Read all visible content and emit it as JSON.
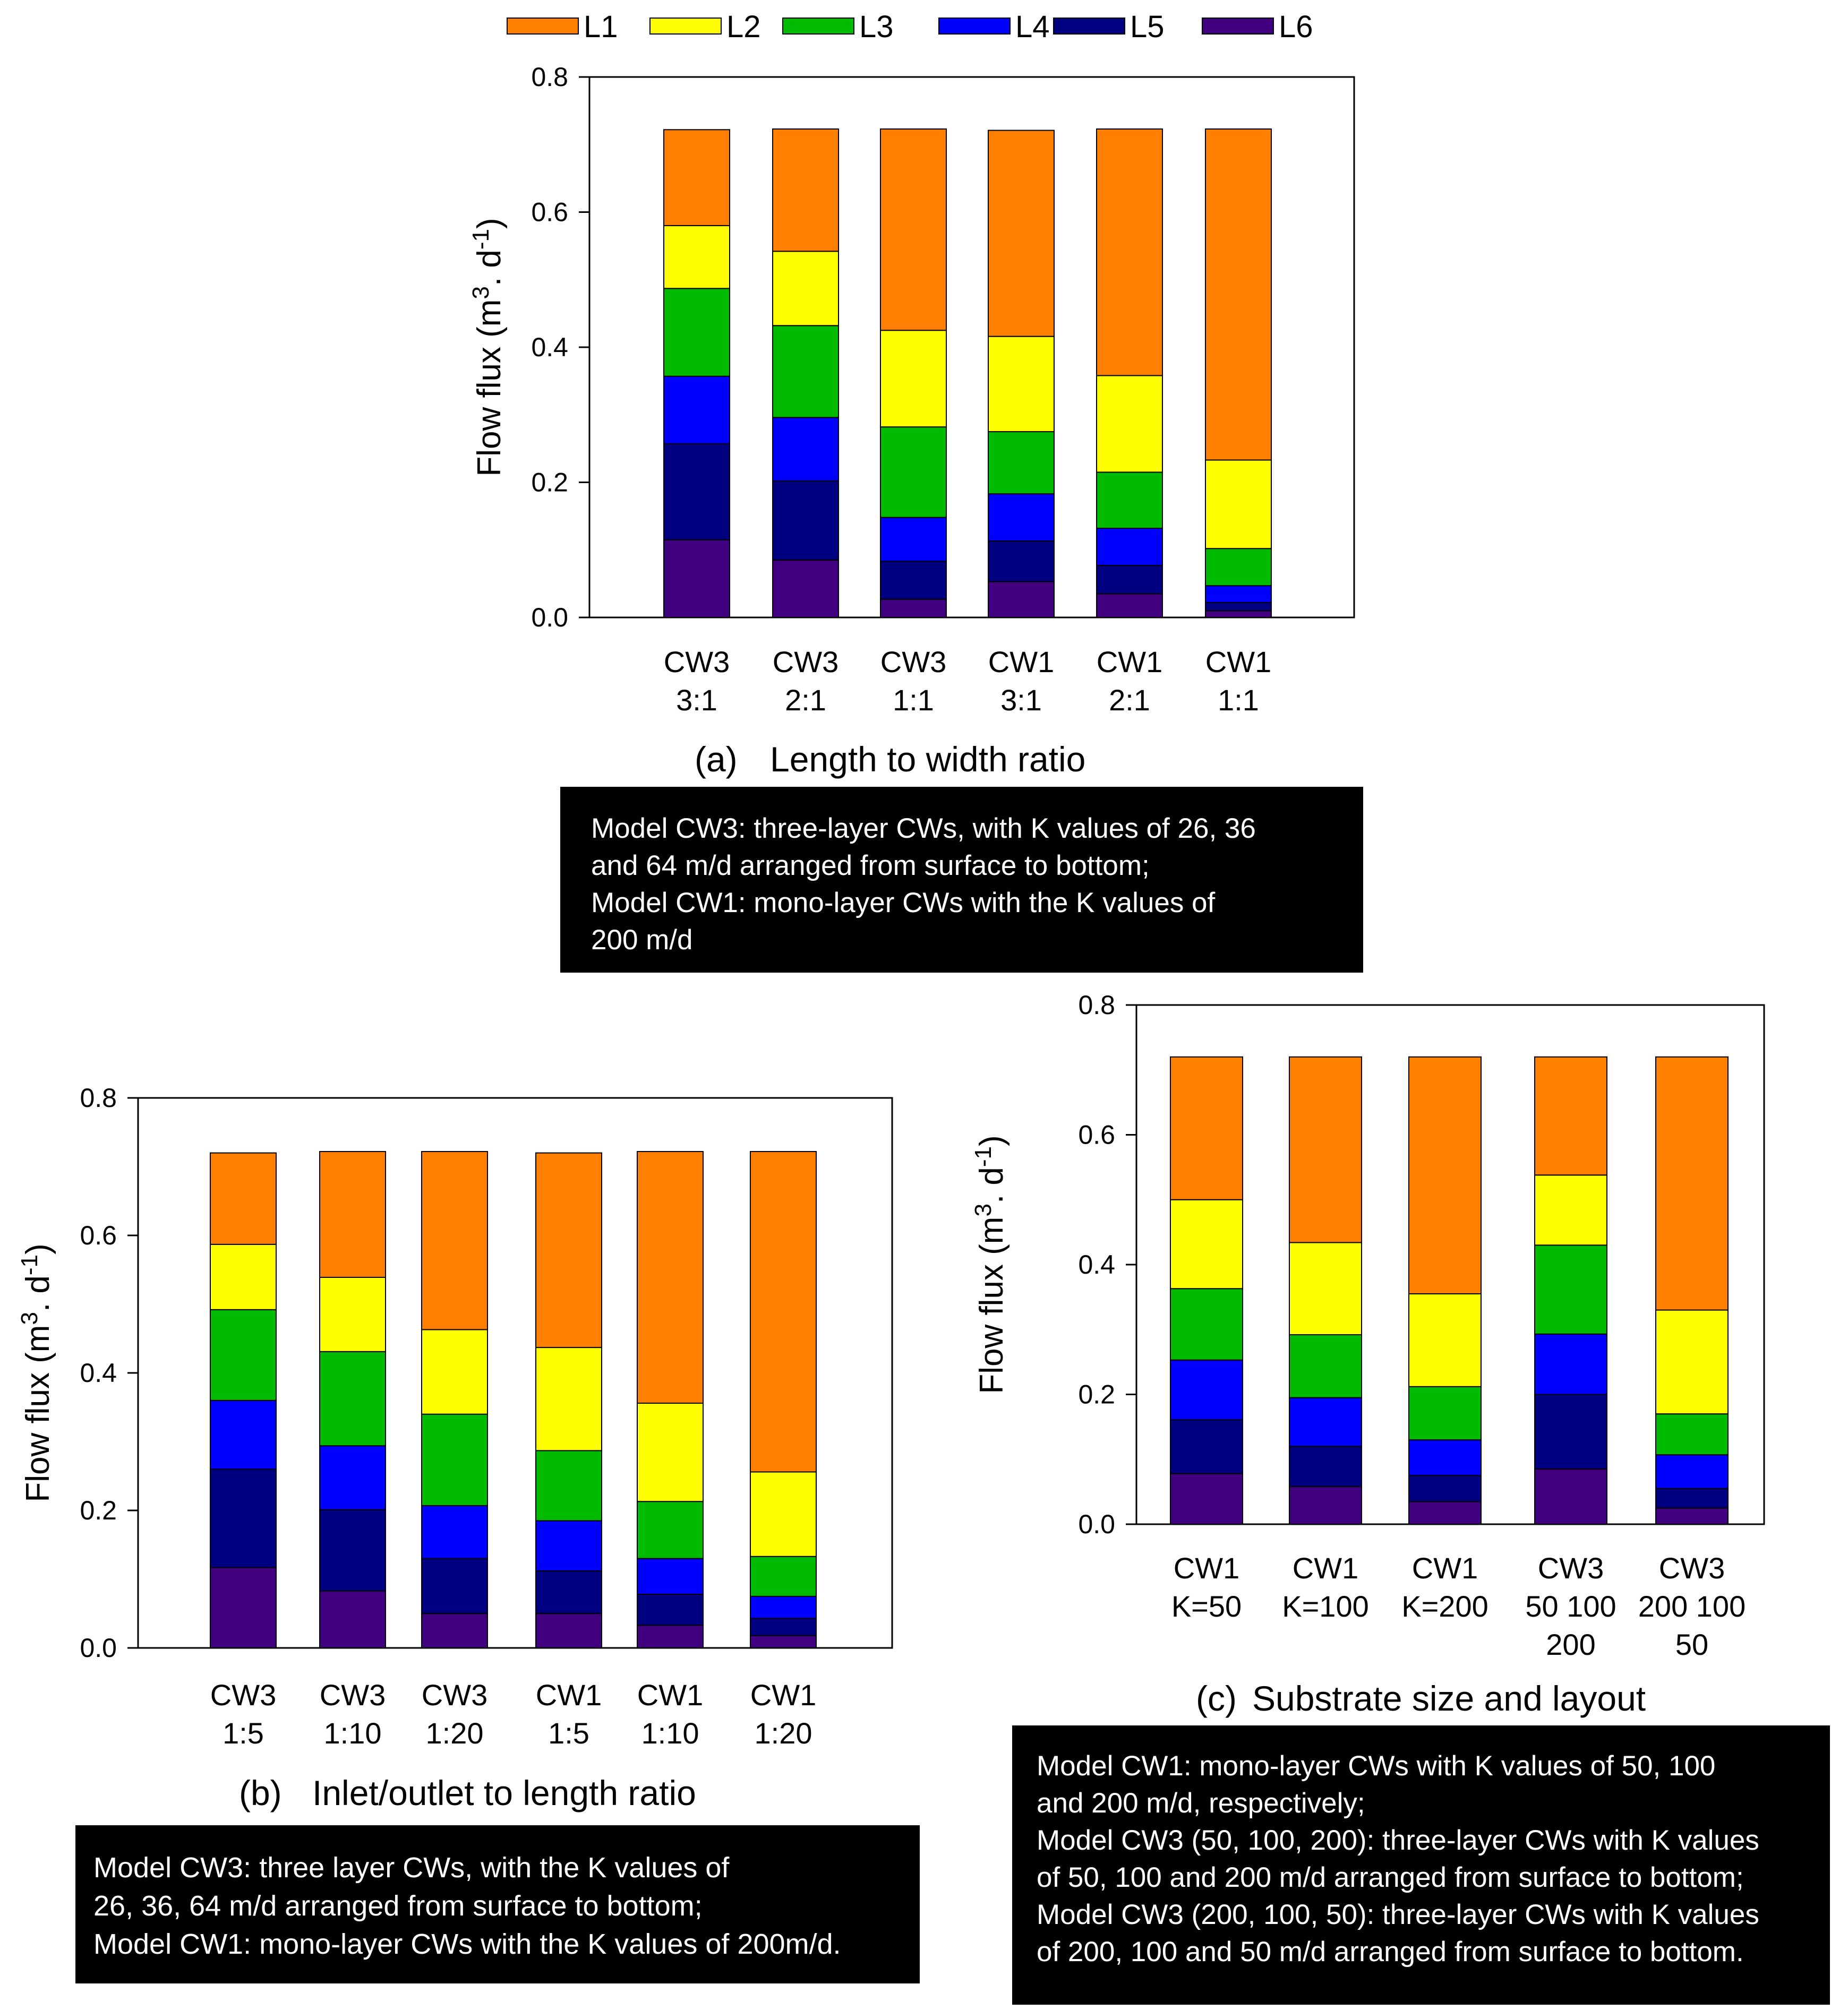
{
  "colors": {
    "L1": "#FF8000",
    "L2": "#FFFF00",
    "L3": "#00BB00",
    "L4": "#0000FF",
    "L5": "#000080",
    "L6": "#400080"
  },
  "legend": [
    "L1",
    "L2",
    "L3",
    "L4",
    "L5",
    "L6"
  ],
  "chart_data": [
    {
      "id": "a",
      "type": "bar",
      "stacked": true,
      "ylabel_text": "Flow  flux (m",
      "ylabel_sup1": "3",
      "ylabel_mid": ".  d",
      "ylabel_sup2": "-1",
      "ylabel_end": ")",
      "ylim": [
        0,
        0.8
      ],
      "yticks": [
        "0.0",
        "0.2",
        "0.4",
        "0.6",
        "0.8"
      ],
      "categories": [
        [
          "CW3",
          "3:1"
        ],
        [
          "CW3",
          "2:1"
        ],
        [
          "CW3",
          "1:1"
        ],
        [
          "CW1",
          "3:1"
        ],
        [
          "CW1",
          "2:1"
        ],
        [
          "CW1",
          "1:1"
        ]
      ],
      "caption_letter": "(a)",
      "caption_text": "Length to width ratio",
      "series": [
        {
          "name": "L6",
          "values": [
            0.115,
            0.085,
            0.027,
            0.053,
            0.035,
            0.01
          ]
        },
        {
          "name": "L5",
          "values": [
            0.142,
            0.117,
            0.056,
            0.06,
            0.042,
            0.012
          ]
        },
        {
          "name": "L4",
          "values": [
            0.1,
            0.094,
            0.065,
            0.07,
            0.055,
            0.025
          ]
        },
        {
          "name": "L3",
          "values": [
            0.13,
            0.136,
            0.134,
            0.092,
            0.083,
            0.055
          ]
        },
        {
          "name": "L2",
          "values": [
            0.093,
            0.11,
            0.143,
            0.141,
            0.143,
            0.131
          ]
        },
        {
          "name": "L1",
          "values": [
            0.142,
            0.181,
            0.298,
            0.305,
            0.365,
            0.49
          ]
        }
      ]
    },
    {
      "id": "b",
      "type": "bar",
      "stacked": true,
      "ylabel_text": "Flow  flux (m",
      "ylabel_sup1": "3",
      "ylabel_mid": ".  d",
      "ylabel_sup2": "-1",
      "ylabel_end": ")",
      "ylim": [
        0,
        0.8
      ],
      "yticks": [
        "0.0",
        "0.2",
        "0.4",
        "0.6",
        "0.8"
      ],
      "categories": [
        [
          "CW3",
          "1:5"
        ],
        [
          "CW3",
          "1:10"
        ],
        [
          "CW3",
          "1:20"
        ],
        [
          "CW1",
          "1:5"
        ],
        [
          "CW1",
          "1:10"
        ],
        [
          "CW1",
          "1:20"
        ]
      ],
      "caption_letter": "(b)",
      "caption_text": "Inlet/outlet to length ratio",
      "series": [
        {
          "name": "L6",
          "values": [
            0.117,
            0.083,
            0.05,
            0.05,
            0.033,
            0.018
          ]
        },
        {
          "name": "L5",
          "values": [
            0.143,
            0.118,
            0.08,
            0.062,
            0.045,
            0.025
          ]
        },
        {
          "name": "L4",
          "values": [
            0.1,
            0.093,
            0.077,
            0.073,
            0.052,
            0.032
          ]
        },
        {
          "name": "L3",
          "values": [
            0.132,
            0.137,
            0.133,
            0.102,
            0.083,
            0.058
          ]
        },
        {
          "name": "L2",
          "values": [
            0.095,
            0.108,
            0.123,
            0.15,
            0.143,
            0.123
          ]
        },
        {
          "name": "L1",
          "values": [
            0.133,
            0.183,
            0.259,
            0.283,
            0.366,
            0.466
          ]
        }
      ]
    },
    {
      "id": "c",
      "type": "bar",
      "stacked": true,
      "ylabel_text": "Flow  flux (m",
      "ylabel_sup1": "3",
      "ylabel_mid": ".  d",
      "ylabel_sup2": "-1",
      "ylabel_end": ")",
      "ylim": [
        0,
        0.8
      ],
      "yticks": [
        "0.0",
        "0.2",
        "0.4",
        "0.6",
        "0.8"
      ],
      "categories": [
        [
          "CW1",
          "K=50"
        ],
        [
          "CW1",
          "K=100"
        ],
        [
          "CW1",
          "K=200"
        ],
        [
          "CW3",
          "50 100",
          "200"
        ],
        [
          "CW3",
          "200 100",
          "50"
        ]
      ],
      "caption_letter": "(c)",
      "caption_text": "Substrate size and layout",
      "series": [
        {
          "name": "L6",
          "values": [
            0.078,
            0.058,
            0.035,
            0.085,
            0.025
          ]
        },
        {
          "name": "L5",
          "values": [
            0.083,
            0.062,
            0.04,
            0.115,
            0.03
          ]
        },
        {
          "name": "L4",
          "values": [
            0.092,
            0.075,
            0.055,
            0.093,
            0.052
          ]
        },
        {
          "name": "L3",
          "values": [
            0.11,
            0.097,
            0.082,
            0.137,
            0.063
          ]
        },
        {
          "name": "L2",
          "values": [
            0.137,
            0.142,
            0.143,
            0.108,
            0.16
          ]
        },
        {
          "name": "L1",
          "values": [
            0.22,
            0.286,
            0.365,
            0.182,
            0.39
          ]
        }
      ]
    }
  ],
  "notes": {
    "a": [
      "Model CW3: three-layer CWs, with K values of 26, 36",
      "and 64 m/d arranged from surface to bottom;",
      "Model CW1: mono-layer CWs with the K values of",
      "200 m/d"
    ],
    "b": [
      "Model CW3: three layer CWs, with the K values of",
      "26, 36, 64 m/d arranged from surface to bottom;",
      "Model CW1: mono-layer CWs with the K values of 200m/d."
    ],
    "c": [
      "Model CW1: mono-layer CWs with K values of 50, 100",
      "and 200 m/d, respectively;",
      "Model CW3 (50, 100, 200): three-layer CWs with K values",
      "of 50, 100 and 200 m/d arranged from surface to bottom;",
      "Model CW3 (200, 100, 50): three-layer CWs with K values",
      "of 200, 100 and 50 m/d arranged from surface to bottom."
    ]
  }
}
